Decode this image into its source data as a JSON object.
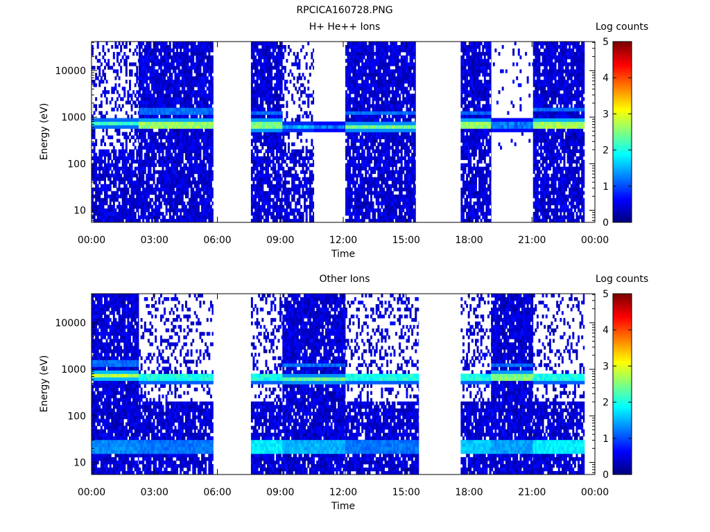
{
  "page": {
    "title": "RPCICA160728.PNG"
  },
  "chart_data": [
    {
      "type": "heatmap",
      "title": "H+ He++ Ions",
      "xlabel": "Time",
      "ylabel": "Energy (eV)",
      "y_scale": "log",
      "ylim": [
        5.5,
        42000
      ],
      "x_range_hours": [
        0,
        24
      ],
      "x_ticks": [
        "00:00",
        "03:00",
        "06:00",
        "09:00",
        "12:00",
        "15:00",
        "18:00",
        "21:00",
        "00:00"
      ],
      "y_ticks": [
        10,
        100,
        1000,
        10000
      ],
      "y_tick_labels": [
        "10",
        "100",
        "1000",
        "10000"
      ],
      "colorbar": {
        "label": "Log counts",
        "min": 0,
        "max": 5,
        "ticks": [
          "0",
          "1",
          "2",
          "3",
          "4",
          "5"
        ]
      },
      "data_gaps_hours": [
        [
          5.8,
          7.6
        ],
        [
          15.45,
          17.6
        ]
      ],
      "segments": [
        {
          "start_h": 0.0,
          "end_h": 2.25,
          "bg_density": 0.35,
          "low_density": 0.8,
          "band_ev": 720,
          "band_level": 2.1,
          "secondary_band_ev": 0
        },
        {
          "start_h": 2.25,
          "end_h": 5.8,
          "bg_density": 0.9,
          "low_density": 0.85,
          "band_ev": 700,
          "band_level": 2.6,
          "secondary_band_ev": 1350
        },
        {
          "start_h": 7.6,
          "end_h": 9.1,
          "bg_density": 0.9,
          "low_density": 0.8,
          "band_ev": 680,
          "band_level": 2.5,
          "secondary_band_ev": 1300
        },
        {
          "start_h": 9.1,
          "end_h": 10.6,
          "bg_density": 0.25,
          "low_density": 0.75,
          "band_ev": 640,
          "band_level": 1.5,
          "secondary_band_ev": 0
        },
        {
          "start_h": 10.6,
          "end_h": 12.1,
          "bg_density": 0.0,
          "low_density": 0.0,
          "band_ev": 620,
          "band_level": 1.2,
          "secondary_band_ev": 0
        },
        {
          "start_h": 12.1,
          "end_h": 15.45,
          "bg_density": 0.9,
          "low_density": 0.85,
          "band_ev": 640,
          "band_level": 2.4,
          "secondary_band_ev": 1300
        },
        {
          "start_h": 17.6,
          "end_h": 19.05,
          "bg_density": 0.9,
          "low_density": 0.8,
          "band_ev": 700,
          "band_level": 2.6,
          "secondary_band_ev": 1300
        },
        {
          "start_h": 19.05,
          "end_h": 21.05,
          "bg_density": 0.05,
          "low_density": 0.0,
          "band_ev": 690,
          "band_level": 1.2,
          "secondary_band_ev": 0
        },
        {
          "start_h": 21.05,
          "end_h": 23.5,
          "bg_density": 0.9,
          "low_density": 0.85,
          "band_ev": 700,
          "band_level": 2.7,
          "secondary_band_ev": 1400
        }
      ]
    },
    {
      "type": "heatmap",
      "title": "Other Ions",
      "xlabel": "Time",
      "ylabel": "Energy (eV)",
      "y_scale": "log",
      "ylim": [
        5.5,
        42000
      ],
      "x_range_hours": [
        0,
        24
      ],
      "x_ticks": [
        "00:00",
        "03:00",
        "06:00",
        "09:00",
        "12:00",
        "15:00",
        "18:00",
        "21:00",
        "00:00"
      ],
      "y_ticks": [
        10,
        100,
        1000,
        10000
      ],
      "y_tick_labels": [
        "10",
        "100",
        "1000",
        "10000"
      ],
      "colorbar": {
        "label": "Log counts",
        "min": 0,
        "max": 5,
        "ticks": [
          "0",
          "1",
          "2",
          "3",
          "4",
          "5"
        ]
      },
      "data_gaps_hours": [
        [
          5.8,
          7.6
        ],
        [
          15.6,
          17.6
        ]
      ],
      "segments": [
        {
          "start_h": 0.0,
          "end_h": 2.25,
          "bg_density": 0.9,
          "low_density": 0.9,
          "band_ev": 750,
          "band_level": 2.8,
          "secondary_band_ev": 1350,
          "low_band_ev": 22,
          "low_band_level": 1.3
        },
        {
          "start_h": 2.25,
          "end_h": 5.8,
          "bg_density": 0.25,
          "low_density": 0.85,
          "band_ev": 650,
          "band_level": 2.0,
          "secondary_band_ev": 0,
          "low_band_ev": 22,
          "low_band_level": 1.2
        },
        {
          "start_h": 7.6,
          "end_h": 9.1,
          "bg_density": 0.3,
          "low_density": 0.85,
          "band_ev": 650,
          "band_level": 2.0,
          "secondary_band_ev": 0,
          "low_band_ev": 22,
          "low_band_level": 1.8
        },
        {
          "start_h": 9.1,
          "end_h": 12.1,
          "bg_density": 0.9,
          "low_density": 0.9,
          "band_ev": 640,
          "band_level": 2.4,
          "secondary_band_ev": 1300,
          "low_band_ev": 22,
          "low_band_level": 1.5
        },
        {
          "start_h": 12.1,
          "end_h": 15.6,
          "bg_density": 0.25,
          "low_density": 0.85,
          "band_ev": 650,
          "band_level": 2.0,
          "secondary_band_ev": 0,
          "low_band_ev": 22,
          "low_band_level": 1.2
        },
        {
          "start_h": 17.6,
          "end_h": 19.05,
          "bg_density": 0.3,
          "low_density": 0.85,
          "band_ev": 660,
          "band_level": 2.0,
          "secondary_band_ev": 0,
          "low_band_ev": 22,
          "low_band_level": 1.6
        },
        {
          "start_h": 19.05,
          "end_h": 21.05,
          "bg_density": 0.9,
          "low_density": 0.9,
          "band_ev": 700,
          "band_level": 2.5,
          "secondary_band_ev": 1300,
          "low_band_ev": 22,
          "low_band_level": 1.4
        },
        {
          "start_h": 21.05,
          "end_h": 23.5,
          "bg_density": 0.25,
          "low_density": 0.85,
          "band_ev": 650,
          "band_level": 2.0,
          "secondary_band_ev": 0,
          "low_band_ev": 22,
          "low_band_level": 1.8
        }
      ]
    }
  ]
}
